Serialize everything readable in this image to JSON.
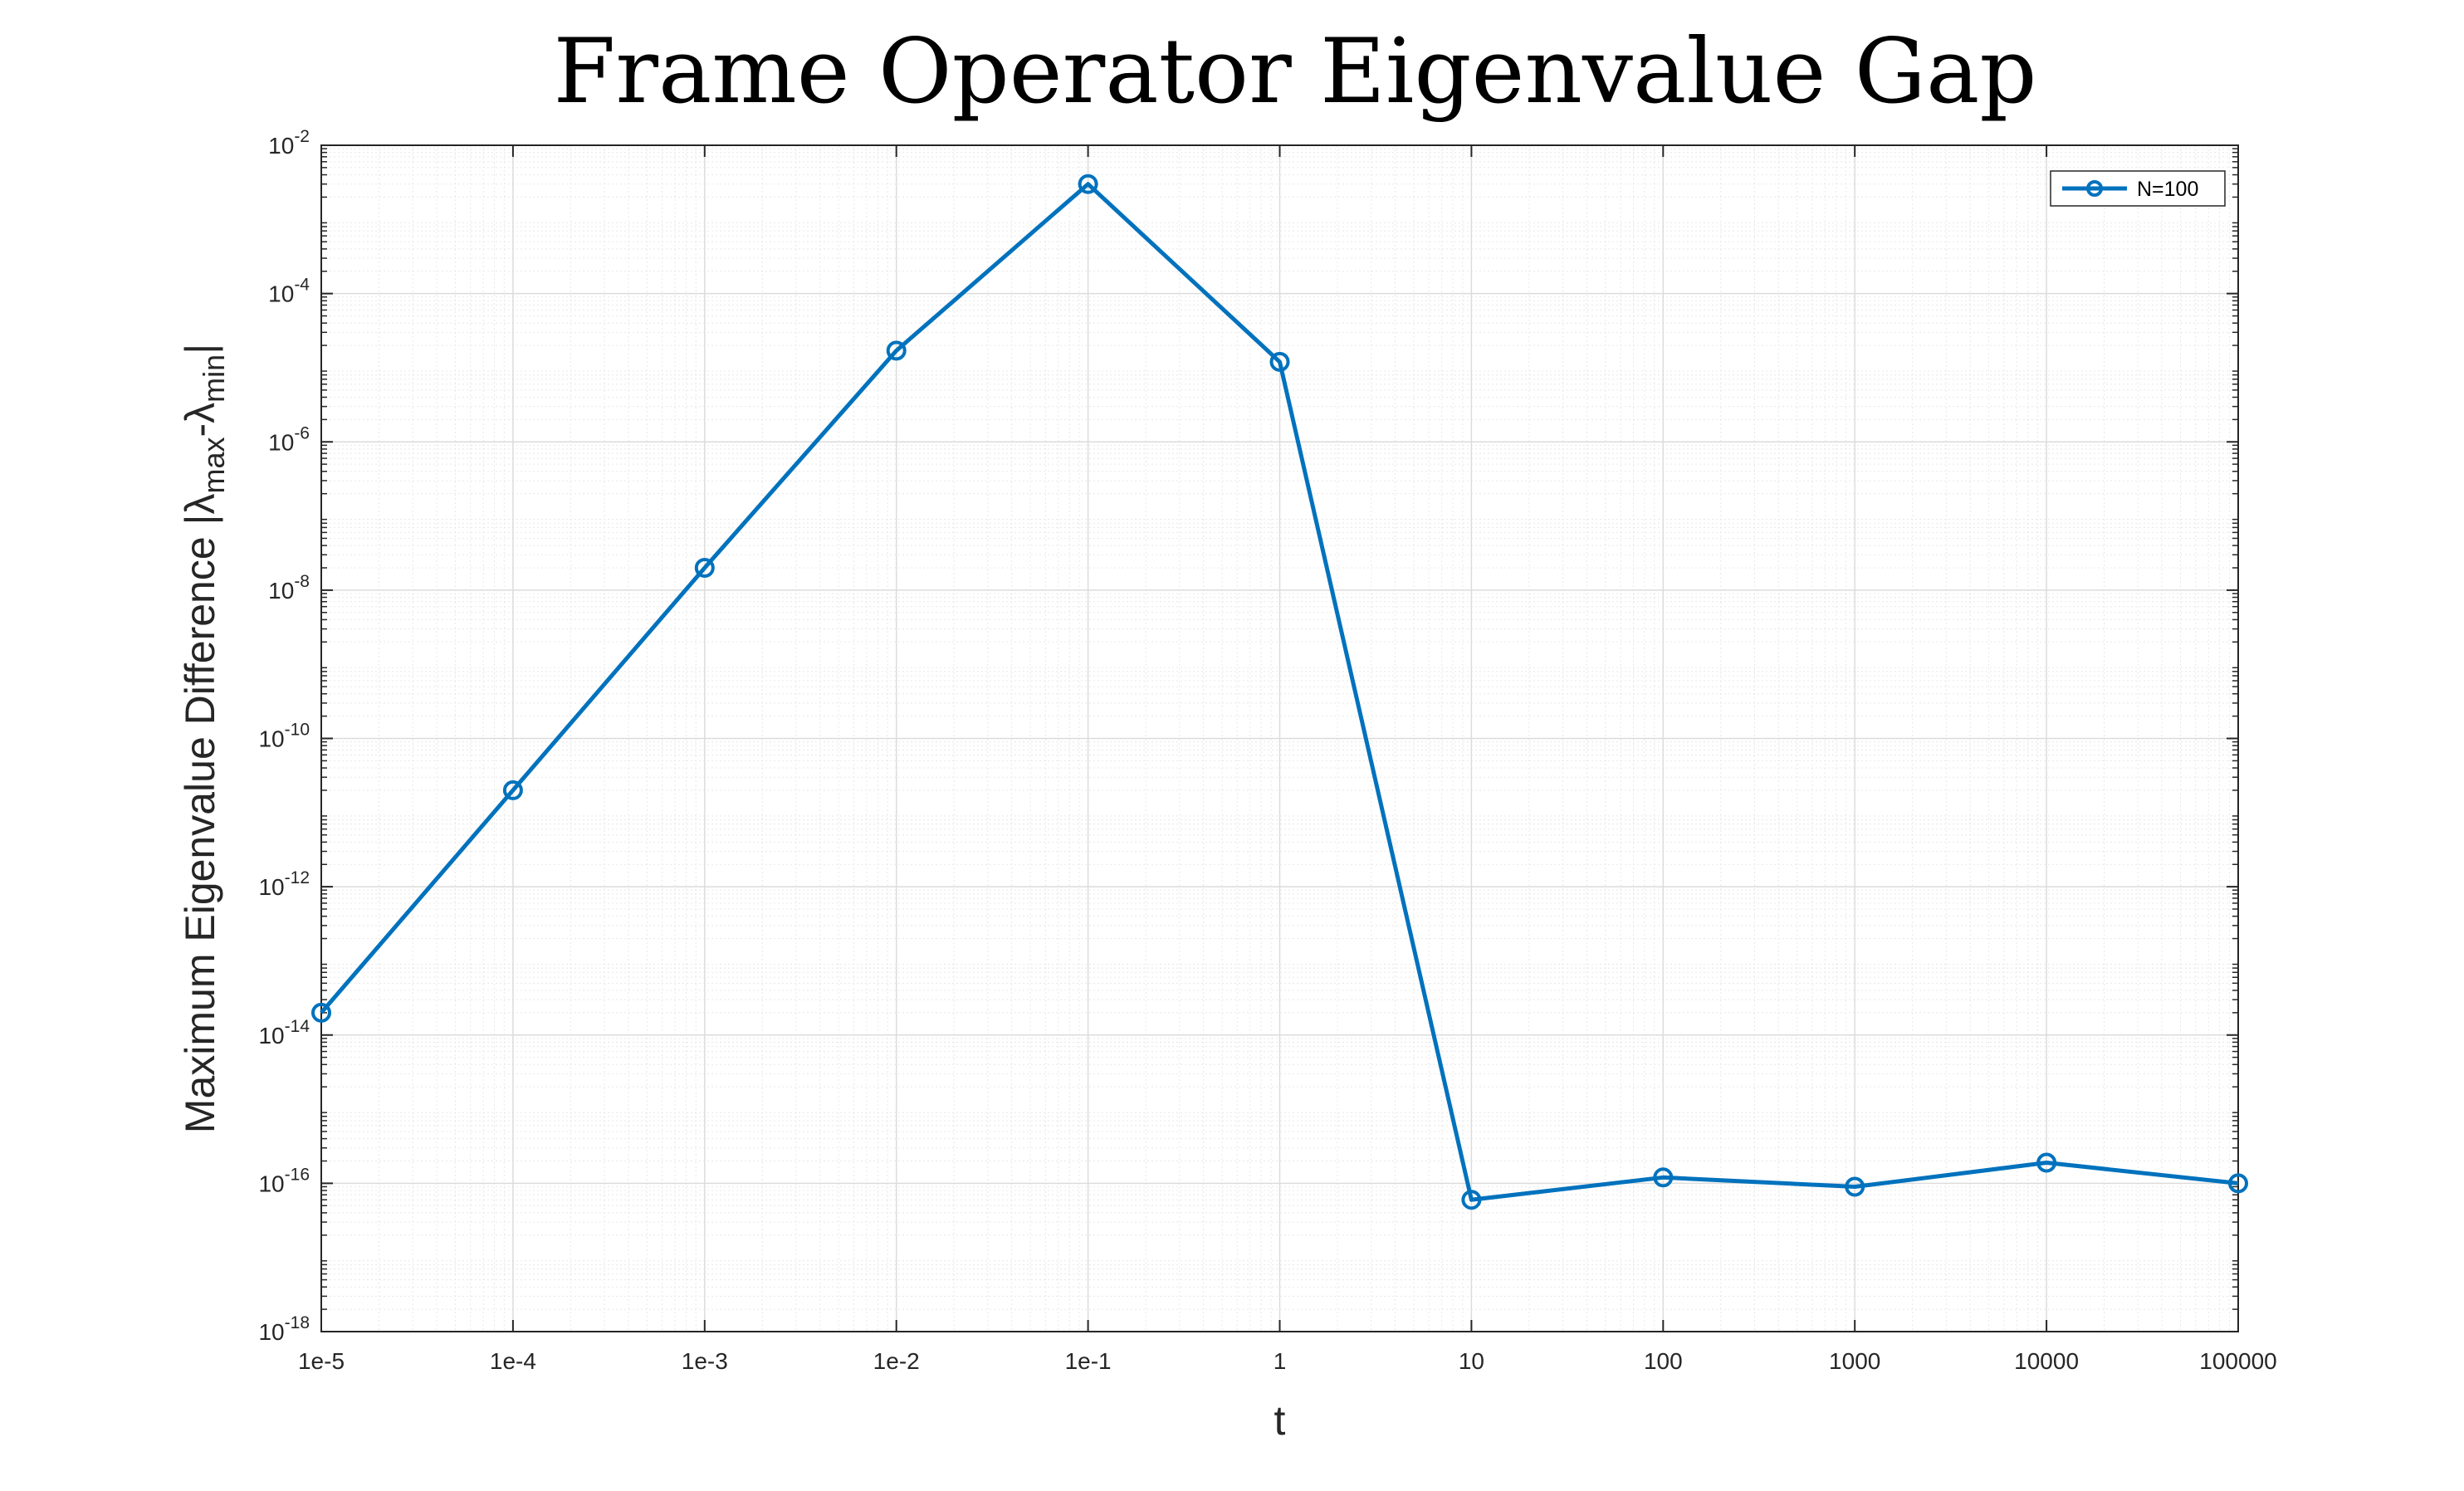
{
  "chart_data": {
    "type": "line",
    "title": "Frame Operator Eigenvalue Gap",
    "xlabel": "t",
    "ylabel": {
      "prefix": "Maximum Eigenvalue Difference |",
      "lambda": "λ",
      "sub_max": "max",
      "minus": "-",
      "sub_min": "min",
      "suffix": "|"
    },
    "x_scale": "log",
    "y_scale": "log",
    "grid": true,
    "legend_position": "top-right",
    "x": [
      1e-05,
      0.0001,
      0.001,
      0.01,
      0.1,
      1,
      10,
      100,
      1000,
      10000,
      100000
    ],
    "x_tick_labels": [
      "1e-5",
      "1e-4",
      "1e-3",
      "1e-2",
      "1e-1",
      "1",
      "10",
      "100",
      "1000",
      "10000",
      "100000"
    ],
    "xlim": [
      1e-05,
      100000
    ],
    "ylim": [
      1e-18,
      0.01
    ],
    "y_tick_exponents": [
      -18,
      -16,
      -14,
      -12,
      -10,
      -8,
      -6,
      -4,
      -2
    ],
    "y_tick_base": "10",
    "series": [
      {
        "name": "N=100",
        "color": "#0072BD",
        "marker": "circle",
        "values": [
          2e-14,
          2e-11,
          2e-08,
          1.7e-05,
          0.003,
          1.2e-05,
          6e-17,
          1.2e-16,
          9e-17,
          1.9e-16,
          1e-16
        ]
      }
    ]
  }
}
